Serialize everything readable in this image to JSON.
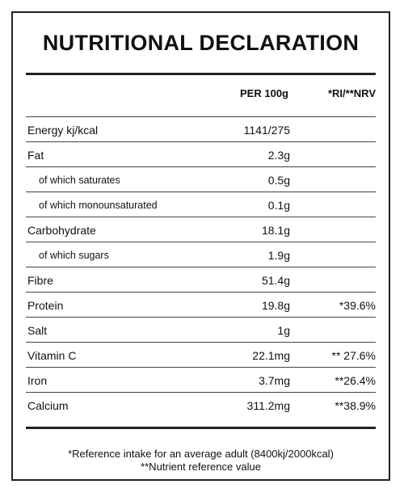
{
  "title": "NUTRITIONAL DECLARATION",
  "headers": {
    "per_100g": "PER 100g",
    "ri_nrv": "*RI/**NRV"
  },
  "rows": [
    {
      "name": "Energy kj/kcal",
      "per": "1141/275",
      "ri": "",
      "sub": false
    },
    {
      "name": "Fat",
      "per": "2.3g",
      "ri": "",
      "sub": false
    },
    {
      "name": "of which saturates",
      "per": "0.5g",
      "ri": "",
      "sub": true
    },
    {
      "name": "of which monounsaturated",
      "per": "0.1g",
      "ri": "",
      "sub": true
    },
    {
      "name": "Carbohydrate",
      "per": "18.1g",
      "ri": "",
      "sub": false
    },
    {
      "name": "of which sugars",
      "per": "1.9g",
      "ri": "",
      "sub": true
    },
    {
      "name": "Fibre",
      "per": "51.4g",
      "ri": "",
      "sub": false
    },
    {
      "name": "Protein",
      "per": "19.8g",
      "ri": "*39.6%",
      "sub": false
    },
    {
      "name": "Salt",
      "per": "1g",
      "ri": "",
      "sub": false
    },
    {
      "name": "Vitamin C",
      "per": "22.1mg",
      "ri": "** 27.6%",
      "sub": false
    },
    {
      "name": "Iron",
      "per": "3.7mg",
      "ri": "**26.4%",
      "sub": false
    },
    {
      "name": "Calcium",
      "per": "311.2mg",
      "ri": "**38.9%",
      "sub": false
    }
  ],
  "footnotes": {
    "ri": "*Reference intake for an average adult (8400kj/2000kcal)",
    "nrv": "**Nutrient reference value"
  }
}
